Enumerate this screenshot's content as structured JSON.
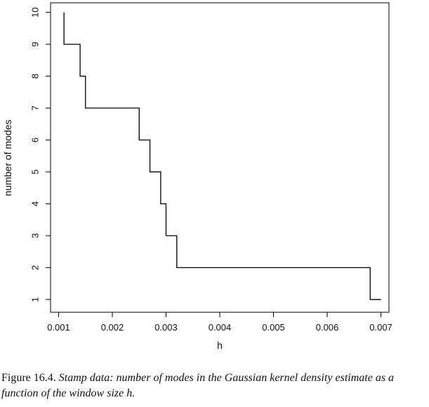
{
  "chart_data": {
    "type": "line",
    "step": true,
    "xlabel": "h",
    "ylabel": "number of modes",
    "xlim": [
      0.00085,
      0.00715
    ],
    "ylim": [
      0.6,
      10.3
    ],
    "x_ticks": [
      "0.001",
      "0.002",
      "0.003",
      "0.004",
      "0.005",
      "0.006",
      "0.007"
    ],
    "x_tick_values": [
      0.001,
      0.002,
      0.003,
      0.004,
      0.005,
      0.006,
      0.007
    ],
    "y_ticks": [
      "1",
      "2",
      "3",
      "4",
      "5",
      "6",
      "7",
      "8",
      "9",
      "10"
    ],
    "y_tick_values": [
      1,
      2,
      3,
      4,
      5,
      6,
      7,
      8,
      9,
      10
    ],
    "points": [
      {
        "x": 0.0011,
        "y": 10
      },
      {
        "x": 0.0011,
        "y": 9
      },
      {
        "x": 0.0014,
        "y": 9
      },
      {
        "x": 0.0014,
        "y": 8
      },
      {
        "x": 0.0015,
        "y": 8
      },
      {
        "x": 0.0015,
        "y": 7
      },
      {
        "x": 0.0025,
        "y": 7
      },
      {
        "x": 0.0025,
        "y": 6
      },
      {
        "x": 0.0027,
        "y": 6
      },
      {
        "x": 0.0027,
        "y": 5
      },
      {
        "x": 0.0029,
        "y": 5
      },
      {
        "x": 0.0029,
        "y": 4
      },
      {
        "x": 0.003,
        "y": 4
      },
      {
        "x": 0.003,
        "y": 3
      },
      {
        "x": 0.0032,
        "y": 3
      },
      {
        "x": 0.0032,
        "y": 2
      },
      {
        "x": 0.0068,
        "y": 2
      },
      {
        "x": 0.0068,
        "y": 1
      },
      {
        "x": 0.007,
        "y": 1
      }
    ],
    "grid": false,
    "line_color": "#000000"
  },
  "caption": {
    "lead": "Figure 16.4.",
    "text": "Stamp data: number of modes in the Gaussian kernel density estimate as a function of the window size h."
  }
}
